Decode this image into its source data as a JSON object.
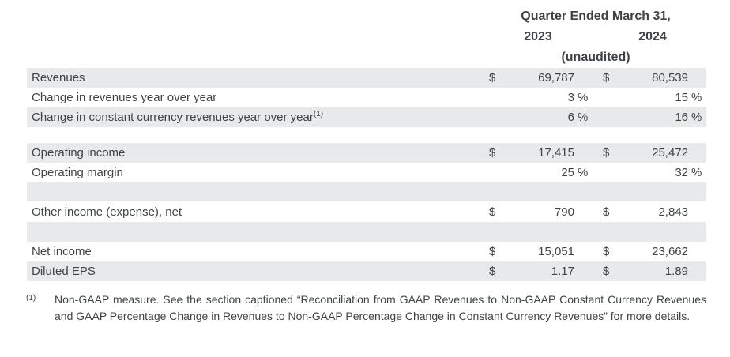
{
  "header": {
    "title": "Quarter Ended March 31,",
    "year_left": "2023",
    "year_right": "2024",
    "subtitle": "(unaudited)"
  },
  "table": {
    "rows": [
      {
        "label": "Revenues",
        "c2023": {
          "currency": "$",
          "value": "69,787",
          "unit": ""
        },
        "c2024": {
          "currency": "$",
          "value": "80,539",
          "unit": ""
        }
      },
      {
        "label": "Change in revenues year over year",
        "c2023": {
          "currency": "",
          "value": "3",
          "unit": "%"
        },
        "c2024": {
          "currency": "",
          "value": "15",
          "unit": "%"
        }
      },
      {
        "label": "Change in constant currency revenues year over year",
        "footnote_ref": "(1)",
        "c2023": {
          "currency": "",
          "value": "6",
          "unit": "%"
        },
        "c2024": {
          "currency": "",
          "value": "16",
          "unit": "%"
        }
      },
      {
        "label": "",
        "spacer": true
      },
      {
        "label": "Operating income",
        "c2023": {
          "currency": "$",
          "value": "17,415",
          "unit": ""
        },
        "c2024": {
          "currency": "$",
          "value": "25,472",
          "unit": ""
        }
      },
      {
        "label": "Operating margin",
        "c2023": {
          "currency": "",
          "value": "25",
          "unit": "%"
        },
        "c2024": {
          "currency": "",
          "value": "32",
          "unit": "%"
        }
      },
      {
        "label": "",
        "spacer": true
      },
      {
        "label": "Other income (expense), net",
        "c2023": {
          "currency": "$",
          "value": "790",
          "unit": ""
        },
        "c2024": {
          "currency": "$",
          "value": "2,843",
          "unit": ""
        }
      },
      {
        "label": "",
        "spacer": true
      },
      {
        "label": "Net income",
        "c2023": {
          "currency": "$",
          "value": "15,051",
          "unit": ""
        },
        "c2024": {
          "currency": "$",
          "value": "23,662",
          "unit": ""
        }
      },
      {
        "label": "Diluted EPS",
        "c2023": {
          "currency": "$",
          "value": "1.17",
          "unit": ""
        },
        "c2024": {
          "currency": "$",
          "value": "1.89",
          "unit": ""
        }
      }
    ]
  },
  "footnote": {
    "marker": "(1)",
    "text": "Non-GAAP measure. See the section captioned “Reconciliation from GAAP Revenues to Non-GAAP Constant Currency Revenues and GAAP Percentage Change in Revenues to Non-GAAP Percentage Change in Constant Currency Revenues” for more details."
  },
  "colors": {
    "row_shade": "#e7e9eb",
    "text": "#3f4347",
    "background": "#ffffff"
  }
}
